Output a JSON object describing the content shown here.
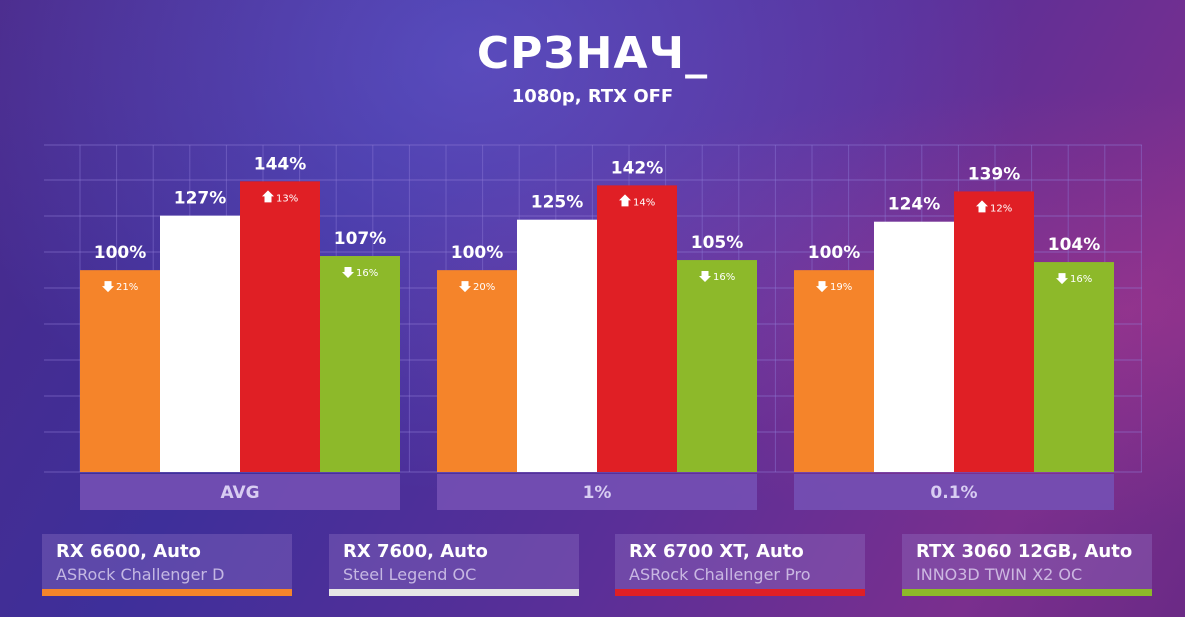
{
  "header": {
    "title": "СРЗНАЧ_",
    "subtitle": "1080p, RTX OFF"
  },
  "colors": {
    "orange": "#f5842a",
    "white": "#ffffff",
    "red": "#e01f25",
    "green": "#8db92a",
    "category_box": "#7450b4",
    "grid": "#8f7cd6"
  },
  "legend": [
    {
      "name": "RX 6600, Auto",
      "model": "ASRock Challenger D",
      "color": "#f5842a"
    },
    {
      "name": "RX 7600, Auto",
      "model": "Steel Legend OC",
      "color": "#e6e6e6"
    },
    {
      "name": "RX 6700 XT, Auto",
      "model": "ASRock Challenger Pro",
      "color": "#e01f25"
    },
    {
      "name": "RTX 3060 12GB, Auto",
      "model": "INNO3D TWIN X2 OC",
      "color": "#8db92a"
    }
  ],
  "chart_data": {
    "type": "bar",
    "title": "СРЗНАЧ_",
    "subtitle": "1080p, RTX OFF",
    "categories": [
      "AVG",
      "1%",
      "0.1%"
    ],
    "value_labels": [
      [
        "100%",
        "127%",
        "144%",
        "107%"
      ],
      [
        "100%",
        "125%",
        "142%",
        "105%"
      ],
      [
        "100%",
        "124%",
        "139%",
        "104%"
      ]
    ],
    "series": [
      {
        "name": "RX 6600, Auto",
        "values": [
          100,
          100,
          100
        ],
        "change_labels": [
          "21%",
          "20%",
          "19%"
        ],
        "change_dir": "down"
      },
      {
        "name": "RX 7600, Auto",
        "values": [
          127,
          125,
          124
        ],
        "change_labels": [
          "",
          "",
          ""
        ],
        "change_dir": ""
      },
      {
        "name": "RX 6700 XT, Auto",
        "values": [
          144,
          142,
          139
        ],
        "change_labels": [
          "13%",
          "14%",
          "12%"
        ],
        "change_dir": "up"
      },
      {
        "name": "RTX 3060 12GB, Auto",
        "values": [
          107,
          105,
          104
        ],
        "change_labels": [
          "16%",
          "16%",
          "16%"
        ],
        "change_dir": "down"
      }
    ],
    "ylim": [
      0,
      162
    ],
    "grid": true,
    "legend_position": "bottom"
  }
}
